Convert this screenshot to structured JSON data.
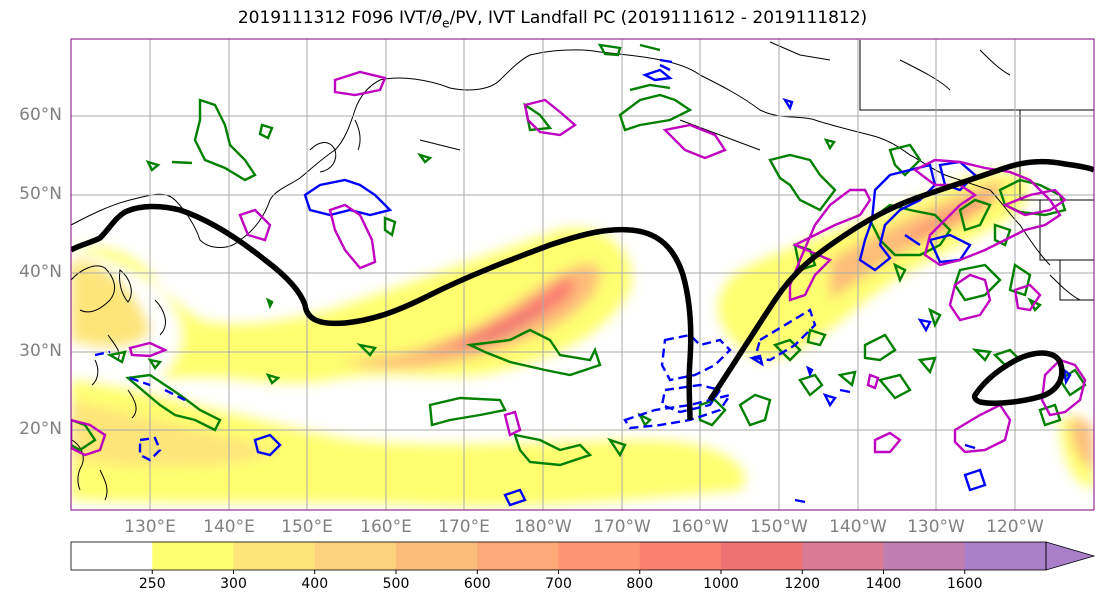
{
  "title": "2019111312 F096 IVT/θe/PV, IVT Landfall PC (2019111612 - 2019111812)",
  "title_parts": {
    "pre": "2019111312 F096 IVT/",
    "theta": "θ",
    "sub": "e",
    "post": "/PV, IVT Landfall PC (2019111612 - 2019111812)"
  },
  "lat_labels": [
    "60°N",
    "50°N",
    "40°N",
    "30°N",
    "20°N"
  ],
  "lon_labels": [
    "130°E",
    "140°E",
    "150°E",
    "160°E",
    "170°E",
    "180°W",
    "170°W",
    "160°W",
    "150°W",
    "140°W",
    "130°W",
    "120°W"
  ],
  "colorbar": {
    "ticks": [
      "250",
      "300",
      "400",
      "500",
      "600",
      "700",
      "800",
      "1000",
      "1200",
      "1400",
      "1600"
    ],
    "colors": [
      "#ffffff",
      "#ffff70",
      "#fde57a",
      "#fcd27e",
      "#fdbd7a",
      "#fda877",
      "#fd9472",
      "#fb8070",
      "#ee7374",
      "#da7b96",
      "#c17eb0",
      "#a87fc8"
    ]
  },
  "colors": {
    "pv_pos": "#008000",
    "pv_neg": "#0000ff",
    "theta": "#c000c0",
    "pc_contour": "#000000",
    "grid": "#a9a9a9"
  }
}
